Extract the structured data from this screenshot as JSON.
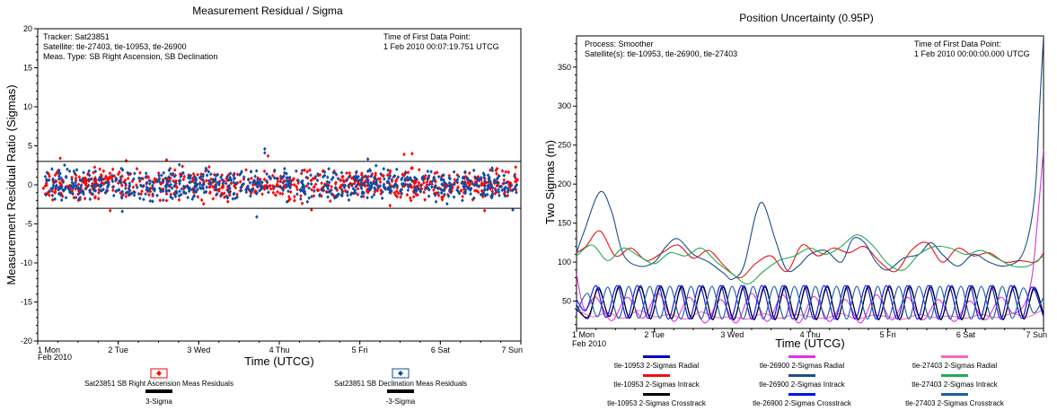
{
  "chart_data": [
    {
      "type": "scatter",
      "title": "Measurement Residual / Sigma",
      "xlabel": "Time (UTCG)",
      "ylabel": "Measurement Residual Ratio (Sigmas)",
      "x_ticks": [
        "1 Mon",
        "2 Tue",
        "3 Wed",
        "4 Thu",
        "5 Fri",
        "6 Sat",
        "7 Sun"
      ],
      "x_sub_label": "Feb 2010",
      "xlim": [
        1,
        7
      ],
      "ylim": [
        -20,
        20
      ],
      "y_ticks": [
        20,
        15,
        10,
        5,
        0,
        -5,
        -10,
        -15,
        -20
      ],
      "info_left": [
        "Tracker: Sat23851",
        "Satellite: tle-27403, tle-10953, tle-26900",
        "Meas. Type: SB Right Ascension, SB Declination"
      ],
      "info_right": [
        "Time of First Data Point:",
        "1 Feb 2010 00:07:19.751 UTCG"
      ],
      "thresholds": [
        {
          "name": "3-Sigma",
          "y": 3,
          "color": "#000000"
        },
        {
          "name": "-3-Sigma",
          "y": -3,
          "color": "#000000"
        }
      ],
      "series": [
        {
          "name": "Sat23851 SB Right Ascension Meas Residuals",
          "color": "#ff0000",
          "marker": "diamond",
          "spread": 1.1,
          "outliers": [
            [
              1.28,
              3.4
            ],
            [
              1.9,
              -3.3
            ],
            [
              2.6,
              3.2
            ],
            [
              3.86,
              3.7
            ],
            [
              5.55,
              3.9
            ],
            [
              5.65,
              4.0
            ],
            [
              6.55,
              -3.3
            ],
            [
              2.1,
              3.1
            ],
            [
              4.4,
              -3.2
            ]
          ]
        },
        {
          "name": "Sat23851 SB Declination Meas Residuals",
          "color": "#0b4fa3",
          "marker": "diamond",
          "spread": 1.1,
          "outliers": [
            [
              3.82,
              4.6
            ],
            [
              3.82,
              4.1
            ],
            [
              3.72,
              -4.1
            ],
            [
              2.05,
              -3.4
            ],
            [
              5.1,
              3.3
            ],
            [
              6.9,
              -3.2
            ]
          ]
        }
      ],
      "legend": [
        "Sat23851 SB Right Ascension Meas Residuals",
        "Sat23851 SB Declination Meas Residuals",
        "3-Sigma",
        "-3-Sigma"
      ]
    },
    {
      "type": "line",
      "title": "Position Uncertainty (0.95P)",
      "xlabel": "Time (UTCG)",
      "ylabel": "Two Sigmas (m)",
      "x_ticks": [
        "1 Mon",
        "2 Tue",
        "3 Wed",
        "4 Thu",
        "5 Fri",
        "6 Sat",
        "7 Sun"
      ],
      "x_sub_label": "Feb 2010",
      "xlim": [
        1,
        7
      ],
      "ylim": [
        15,
        390
      ],
      "y_ticks": [
        350,
        300,
        250,
        200,
        150,
        100,
        50
      ],
      "info_left": [
        "Process: Smoother",
        "Satellite(s): tle-10953, tle-26900, tle-27403"
      ],
      "info_right": [
        "Time of First Data Point:",
        "1 Feb 2010 00:00:00.000 UTCG"
      ],
      "series": [
        {
          "name": "tle-10953 2-Sigmas Radial",
          "color": "#0000cc",
          "x": [
            1.0,
            1.15,
            1.28,
            1.42,
            1.55,
            1.68,
            1.82,
            1.95,
            2.08,
            2.22,
            2.35,
            2.48,
            2.62,
            2.75,
            2.88,
            3.02,
            3.15,
            3.28,
            3.42,
            3.55,
            3.68,
            3.82,
            3.95,
            4.08,
            4.22,
            4.35,
            4.48,
            4.62,
            4.75,
            4.88,
            5.02,
            5.15,
            5.28,
            5.42,
            5.55,
            5.68,
            5.82,
            5.95,
            6.08,
            6.22,
            6.35,
            6.48,
            6.62,
            6.75,
            6.88,
            7.0
          ],
          "y": [
            45,
            28,
            68,
            30,
            70,
            28,
            70,
            27,
            70,
            27,
            70,
            27,
            70,
            26,
            70,
            26,
            70,
            26,
            70,
            26,
            70,
            26,
            70,
            26,
            70,
            26,
            70,
            26,
            70,
            26,
            70,
            26,
            70,
            26,
            70,
            26,
            70,
            26,
            70,
            26,
            70,
            26,
            70,
            27,
            68,
            32
          ]
        },
        {
          "name": "tle-26900 2-Sigmas Radial",
          "color": "#e030e0",
          "x": [
            1.0,
            1.1,
            1.25,
            1.45,
            1.65,
            1.85,
            2.05,
            2.25,
            2.45,
            2.65,
            2.85,
            3.05,
            3.25,
            3.45,
            3.65,
            3.85,
            4.05,
            4.25,
            4.45,
            4.65,
            4.85,
            5.05,
            5.25,
            5.45,
            5.65,
            5.85,
            6.05,
            6.25,
            6.45,
            6.6,
            6.75,
            6.85,
            6.92,
            7.0
          ],
          "y": [
            85,
            40,
            55,
            25,
            55,
            28,
            60,
            24,
            55,
            22,
            52,
            22,
            60,
            24,
            58,
            22,
            56,
            24,
            52,
            22,
            58,
            26,
            55,
            26,
            52,
            24,
            50,
            26,
            55,
            35,
            45,
            80,
            150,
            245
          ]
        },
        {
          "name": "tle-27403 2-Sigmas Radial",
          "color": "#ff66bb",
          "x": [
            1.0,
            1.2,
            1.4,
            1.6,
            1.8,
            2.0,
            2.2,
            2.4,
            2.6,
            2.8,
            3.0,
            3.2,
            3.4,
            3.6,
            3.8,
            4.0,
            4.2,
            4.4,
            4.6,
            4.8,
            5.0,
            5.2,
            5.4,
            5.6,
            5.8,
            6.0,
            6.2,
            6.4,
            6.6,
            6.8,
            7.0
          ],
          "y": [
            40,
            30,
            35,
            28,
            38,
            30,
            33,
            27,
            36,
            29,
            30,
            27,
            34,
            28,
            33,
            30,
            28,
            34,
            27,
            32,
            30,
            27,
            33,
            29,
            31,
            28,
            33,
            29,
            34,
            30,
            40
          ]
        },
        {
          "name": "tle-10953 2-Sigmas Intrack",
          "color": "#ee1111",
          "x": [
            1.0,
            1.12,
            1.3,
            1.5,
            1.7,
            1.9,
            2.1,
            2.3,
            2.5,
            2.7,
            2.9,
            3.1,
            3.3,
            3.5,
            3.7,
            3.9,
            4.1,
            4.3,
            4.5,
            4.7,
            4.9,
            5.1,
            5.3,
            5.5,
            5.7,
            5.9,
            6.1,
            6.3,
            6.5,
            6.7,
            6.9,
            7.0
          ],
          "y": [
            112,
            120,
            140,
            108,
            118,
            102,
            112,
            122,
            105,
            115,
            95,
            80,
            98,
            108,
            88,
            122,
            108,
            118,
            112,
            120,
            100,
            88,
            115,
            125,
            100,
            118,
            108,
            112,
            100,
            102,
            100,
            112
          ]
        },
        {
          "name": "tle-26900 2-Sigmas Intrack",
          "color": "#1b4f8a",
          "x": [
            1.0,
            1.1,
            1.3,
            1.45,
            1.6,
            1.8,
            2.0,
            2.15,
            2.3,
            2.5,
            2.7,
            2.9,
            3.0,
            3.15,
            3.3,
            3.4,
            3.55,
            3.7,
            3.85,
            4.0,
            4.2,
            4.4,
            4.55,
            4.7,
            4.85,
            5.0,
            5.2,
            5.4,
            5.55,
            5.7,
            5.9,
            6.1,
            6.3,
            6.5,
            6.7,
            6.82,
            6.9,
            6.95,
            7.0
          ],
          "y": [
            112,
            140,
            190,
            165,
            110,
            95,
            100,
            120,
            130,
            110,
            100,
            85,
            78,
            95,
            160,
            175,
            130,
            90,
            95,
            110,
            115,
            100,
            130,
            125,
            100,
            90,
            105,
            110,
            125,
            110,
            95,
            110,
            100,
            95,
            105,
            140,
            200,
            300,
            390
          ]
        },
        {
          "name": "tle-27403 2-Sigmas Intrack",
          "color": "#22aa55",
          "x": [
            1.0,
            1.2,
            1.4,
            1.6,
            1.8,
            2.0,
            2.2,
            2.4,
            2.6,
            2.8,
            3.0,
            3.2,
            3.4,
            3.6,
            3.8,
            4.0,
            4.2,
            4.4,
            4.6,
            4.8,
            5.0,
            5.2,
            5.4,
            5.6,
            5.8,
            6.0,
            6.2,
            6.4,
            6.6,
            6.8,
            7.0
          ],
          "y": [
            108,
            122,
            102,
            118,
            108,
            98,
            112,
            108,
            118,
            100,
            85,
            72,
            88,
            102,
            108,
            118,
            110,
            120,
            135,
            122,
            98,
            90,
            110,
            120,
            118,
            110,
            115,
            105,
            95,
            95,
            108
          ]
        },
        {
          "name": "tle-10953 2-Sigmas Crosstrack",
          "color": "#000000",
          "x": [
            1.0,
            1.15,
            1.28,
            1.42,
            1.55,
            1.68,
            1.82,
            1.95,
            2.08,
            2.22,
            2.35,
            2.48,
            2.62,
            2.75,
            2.88,
            3.02,
            3.15,
            3.28,
            3.42,
            3.55,
            3.68,
            3.82,
            3.95,
            4.08,
            4.22,
            4.35,
            4.48,
            4.62,
            4.75,
            4.88,
            5.02,
            5.15,
            5.28,
            5.42,
            5.55,
            5.68,
            5.82,
            5.95,
            6.08,
            6.22,
            6.35,
            6.48,
            6.62,
            6.75,
            6.88,
            7.0
          ],
          "y": [
            40,
            30,
            66,
            31,
            68,
            29,
            68,
            28,
            68,
            28,
            68,
            28,
            68,
            27,
            68,
            27,
            68,
            27,
            68,
            27,
            68,
            27,
            68,
            27,
            68,
            27,
            68,
            27,
            68,
            27,
            68,
            27,
            68,
            27,
            68,
            27,
            68,
            27,
            68,
            27,
            68,
            27,
            68,
            28,
            66,
            33
          ]
        },
        {
          "name": "tle-26900 2-Sigmas Crosstrack",
          "color": "#0011ee",
          "x": [
            1.0,
            1.12,
            1.25,
            1.38,
            1.52,
            1.65,
            1.78,
            1.92,
            2.05,
            2.18,
            2.32,
            2.45,
            2.58,
            2.72,
            2.85,
            2.98,
            3.12,
            3.25,
            3.38,
            3.52,
            3.65,
            3.78,
            3.92,
            4.05,
            4.18,
            4.32,
            4.45,
            4.58,
            4.72,
            4.85,
            4.98,
            5.12,
            5.25,
            5.38,
            5.52,
            5.65,
            5.78,
            5.92,
            6.05,
            6.18,
            6.32,
            6.45,
            6.58,
            6.72,
            6.85,
            7.0
          ],
          "y": [
            52,
            38,
            70,
            29,
            70,
            28,
            70,
            28,
            70,
            27,
            70,
            27,
            70,
            27,
            70,
            27,
            70,
            27,
            70,
            27,
            70,
            27,
            70,
            27,
            70,
            27,
            70,
            27,
            70,
            27,
            70,
            27,
            70,
            27,
            70,
            27,
            70,
            27,
            70,
            27,
            70,
            27,
            70,
            28,
            68,
            30
          ]
        },
        {
          "name": "tle-27403 2-Sigmas Crosstrack",
          "color": "#1f5fa0",
          "x": [
            1.0,
            1.14,
            1.27,
            1.4,
            1.54,
            1.67,
            1.8,
            1.94,
            2.07,
            2.2,
            2.34,
            2.47,
            2.6,
            2.74,
            2.87,
            3.0,
            3.14,
            3.27,
            3.4,
            3.54,
            3.67,
            3.8,
            3.94,
            4.07,
            4.2,
            4.34,
            4.47,
            4.6,
            4.74,
            4.87,
            5.0,
            5.14,
            5.27,
            5.4,
            5.54,
            5.67,
            5.8,
            5.94,
            6.07,
            6.2,
            6.34,
            6.47,
            6.6,
            6.74,
            6.87,
            7.0
          ],
          "y": [
            35,
            60,
            30,
            68,
            28,
            69,
            28,
            69,
            28,
            69,
            27,
            69,
            27,
            69,
            27,
            69,
            27,
            69,
            27,
            69,
            27,
            69,
            27,
            69,
            27,
            69,
            27,
            69,
            27,
            69,
            27,
            69,
            27,
            69,
            27,
            69,
            27,
            69,
            27,
            69,
            27,
            69,
            28,
            67,
            35,
            55
          ]
        }
      ]
    }
  ]
}
